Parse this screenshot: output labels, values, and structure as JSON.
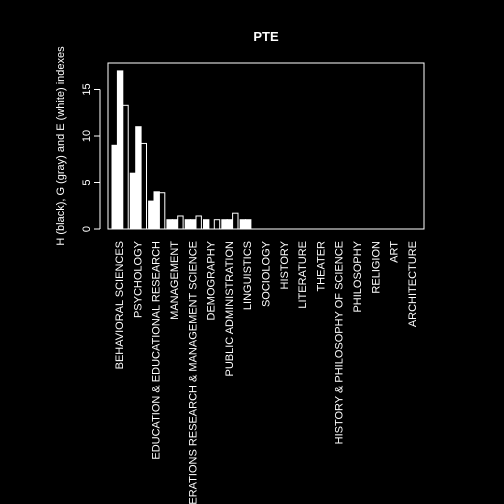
{
  "chart_data": {
    "type": "bar",
    "title": "PTE",
    "ylabel": "H (black), G (gray) and E (white) indexes",
    "xlabel": "",
    "ylim": [
      0,
      18
    ],
    "yticks": [
      0,
      5,
      10,
      15
    ],
    "categories": [
      "BEHAVIORAL SCIENCES",
      "PSYCHOLOGY",
      "EDUCATION & EDUCATIONAL RESEARCH",
      "MANAGEMENT",
      "OPERATIONS RESEARCH & MANAGEMENT SCIENCE",
      "DEMOGRAPHY",
      "PUBLIC ADMINISTRATION",
      "LINGUISTICS",
      "SOCIOLOGY",
      "HISTORY",
      "LITERATURE",
      "THEATER",
      "HISTORY & PHILOSOPHY OF SCIENCE",
      "PHILOSOPHY",
      "RELIGION",
      "ART",
      "ARCHITECTURE"
    ],
    "series": [
      {
        "name": "H",
        "color": "#ffffff",
        "values": [
          9,
          6,
          3,
          1,
          1,
          1,
          1,
          1,
          0,
          0,
          0,
          0,
          0,
          0,
          0,
          0,
          0
        ]
      },
      {
        "name": "G",
        "color": "#ffffff",
        "values": [
          17,
          11,
          4,
          1,
          1,
          0,
          1,
          1,
          0,
          0,
          0,
          0,
          0,
          0,
          0,
          0,
          0
        ]
      },
      {
        "name": "E",
        "color": "#ffffff",
        "values": [
          13.3,
          9.2,
          3.9,
          1.4,
          1.4,
          1,
          1.7,
          0,
          0,
          0,
          0,
          0,
          0,
          0,
          0,
          0,
          0
        ]
      }
    ],
    "grid": false,
    "legend": "none"
  }
}
